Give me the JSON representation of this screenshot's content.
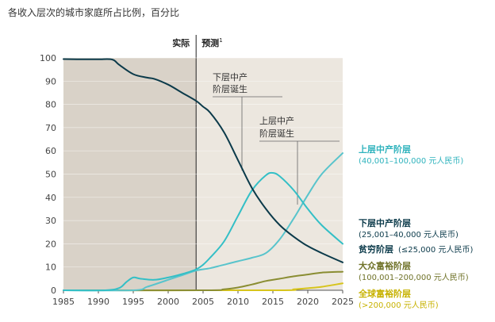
{
  "chart_data": {
    "type": "line",
    "title": "各收入层次的城市家庭所占比例，百分比",
    "phase_actual": "实际",
    "phase_forecast": "预测",
    "phase_forecast_note": "1",
    "x_ticks": [
      "1985",
      "1990",
      "1995",
      "2000",
      "2005",
      "2010",
      "2015",
      "2020",
      "2025"
    ],
    "y_ticks": [
      "0",
      "10",
      "20",
      "30",
      "40",
      "50",
      "60",
      "70",
      "80",
      "90",
      "100"
    ],
    "xlim": [
      1985,
      2025
    ],
    "ylim": [
      0,
      100
    ],
    "actual_end": 2004,
    "annotations": [
      {
        "lines": [
          "下层中产",
          "阶层诞生"
        ]
      },
      {
        "lines": [
          "上层中产",
          "阶层诞生"
        ]
      }
    ],
    "series": [
      {
        "name": "贫穷阶层",
        "range": "(≤25,000 元人民币)",
        "color": "#0b3a4a",
        "x": [
          1985,
          1987,
          1990,
          1992,
          1993,
          1995,
          1997,
          1998,
          2000,
          2002,
          2004,
          2005,
          2006,
          2008,
          2010,
          2012,
          2014,
          2016,
          2018,
          2020,
          2022,
          2025
        ],
        "values": [
          99.5,
          99.4,
          99.4,
          99.3,
          97,
          93,
          91.5,
          91,
          88.5,
          85,
          81.5,
          79,
          76.5,
          68,
          56,
          44,
          35,
          28,
          23,
          19,
          16,
          12
        ]
      },
      {
        "name": "下层中产阶层",
        "range": "(25,001–40,000 元人民币)",
        "color": "#33bfc6",
        "x": [
          1985,
          1991,
          1993,
          1994,
          1995,
          1996,
          1998,
          2000,
          2002,
          2004,
          2005,
          2006,
          2008,
          2010,
          2012,
          2014,
          2015,
          2016,
          2018,
          2020,
          2022,
          2025
        ],
        "values": [
          0,
          0,
          1,
          3.5,
          5.5,
          5,
          4.5,
          5.5,
          7,
          9,
          11,
          14,
          21,
          32,
          43,
          49.5,
          50.5,
          49,
          43,
          35,
          28,
          20
        ]
      },
      {
        "name": "上层中产阶层",
        "range": "(40,001–100,000 元人民币)",
        "color": "#58c4cc",
        "x": [
          1985,
          1995,
          1997,
          2000,
          2002,
          2004,
          2006,
          2008,
          2010,
          2012,
          2014,
          2016,
          2018,
          2020,
          2022,
          2025
        ],
        "values": [
          0,
          0,
          1.5,
          4.5,
          6.5,
          8.5,
          9.5,
          11,
          12.5,
          14,
          16,
          22,
          31,
          41,
          50,
          59
        ]
      },
      {
        "name": "大众富裕阶层",
        "range": "(100,001–200,000 元人民币)",
        "color": "#8a8d32",
        "x": [
          1985,
          2005,
          2008,
          2010,
          2012,
          2014,
          2016,
          2018,
          2020,
          2022,
          2025
        ],
        "values": [
          0,
          0,
          0.4,
          1.2,
          2.5,
          4,
          5,
          6,
          6.8,
          7.6,
          8
        ]
      },
      {
        "name": "全球富裕阶层",
        "range": "(>200,000 元人民币)",
        "color": "#d7c41c",
        "x": [
          1985,
          2015,
          2018,
          2020,
          2022,
          2025
        ],
        "values": [
          0,
          0,
          0.4,
          0.9,
          1.5,
          3
        ]
      }
    ]
  }
}
